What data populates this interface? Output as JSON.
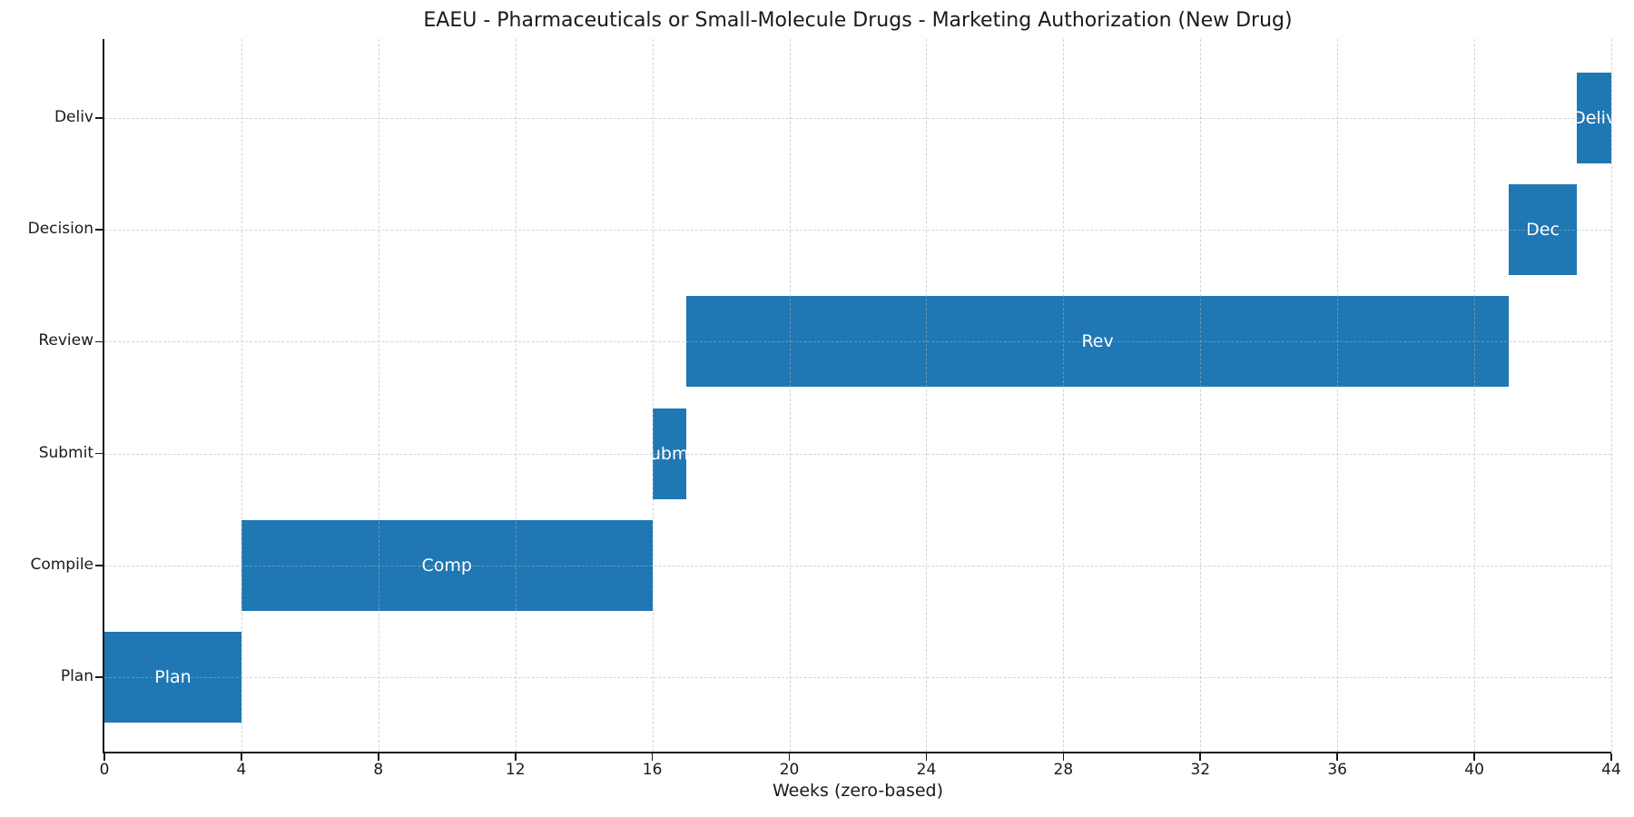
{
  "chart_data": {
    "type": "bar",
    "subtype": "gantt",
    "title": "EAEU - Pharmaceuticals or Small-Molecule Drugs - Marketing Authorization (New Drug)",
    "xlabel": "Weeks (zero-based)",
    "ylabel": "",
    "xlim": [
      0,
      44
    ],
    "x_ticks": [
      0,
      4,
      8,
      12,
      16,
      20,
      24,
      28,
      32,
      36,
      40,
      44
    ],
    "grid": "dashed gridlines on both axes, drawn above bars",
    "legend": "none",
    "bar_color": "#1f77b4",
    "bar_label_color": "#ffffff",
    "y_order_top_to_bottom": [
      "Deliv",
      "Decision",
      "Review",
      "Submit",
      "Compile",
      "Plan"
    ],
    "tasks": [
      {
        "name": "Plan",
        "start": 0,
        "end": 4,
        "duration_weeks": 4,
        "bar_label": "Plan"
      },
      {
        "name": "Compile",
        "start": 4,
        "end": 16,
        "duration_weeks": 12,
        "bar_label": "Comp"
      },
      {
        "name": "Submit",
        "start": 16,
        "end": 17,
        "duration_weeks": 1,
        "bar_label": "Submit"
      },
      {
        "name": "Review",
        "start": 17,
        "end": 41,
        "duration_weeks": 24,
        "bar_label": "Rev"
      },
      {
        "name": "Decision",
        "start": 41,
        "end": 43,
        "duration_weeks": 2,
        "bar_label": "Dec"
      },
      {
        "name": "Deliv",
        "start": 43,
        "end": 44,
        "duration_weeks": 1,
        "bar_label": "Deliv"
      }
    ]
  }
}
